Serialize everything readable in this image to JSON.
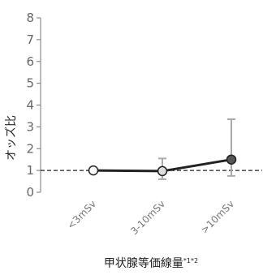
{
  "chart_data": {
    "type": "line",
    "ylabel": "オッズ比",
    "xlabel": "甲状腺等価線量",
    "xlabel_superscript": "*1*2",
    "ylim": [
      0,
      8
    ],
    "yticks": [
      0,
      1,
      2,
      3,
      4,
      5,
      6,
      7,
      8
    ],
    "categories": [
      "<3mSv",
      "3-10mSv",
      ">10mSv"
    ],
    "series": [
      {
        "values": [
          1.0,
          0.97,
          1.5
        ],
        "ci_lower": [
          1.0,
          0.6,
          0.75
        ],
        "ci_upper": [
          1.0,
          1.55,
          3.35
        ],
        "color": "#222222",
        "marker_fill": [
          "#ffffff",
          "#dddddd",
          "#555555"
        ]
      }
    ],
    "reference_line": {
      "y": 1,
      "style": "dashed",
      "color": "#222222"
    },
    "error_bar_color": "#aaaaaa",
    "grid": false,
    "legend": "none"
  }
}
